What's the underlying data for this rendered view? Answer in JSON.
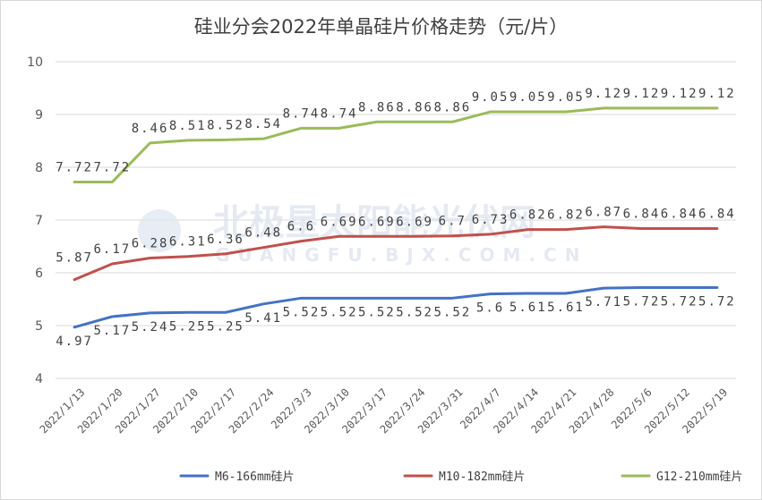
{
  "chart_data": {
    "type": "line",
    "title": "硅业分会2022年单晶硅片价格走势（元/片）",
    "xlabel": "",
    "ylabel": "",
    "ylim": [
      4,
      10
    ],
    "yticks": [
      "4",
      "5",
      "6",
      "7",
      "8",
      "9",
      "10"
    ],
    "x": [
      "2022/1/13",
      "2022/1/20",
      "2022/1/27",
      "2022/2/10",
      "2022/2/17",
      "2022/2/24",
      "2022/3/3",
      "2022/3/10",
      "2022/3/17",
      "2022/3/24",
      "2022/3/31",
      "2022/4/7",
      "2022/4/14",
      "2022/4/21",
      "2022/4/28",
      "2022/5/6",
      "2022/5/12",
      "2022/5/19"
    ],
    "series": [
      {
        "name": "M6-166mm硅片",
        "color": "#4472c4",
        "values": [
          4.97,
          5.17,
          5.24,
          5.25,
          5.25,
          5.41,
          5.52,
          5.52,
          5.52,
          5.52,
          5.52,
          5.6,
          5.61,
          5.61,
          5.71,
          5.72,
          5.72,
          5.72
        ],
        "labels": [
          "4.97",
          "5.17",
          "5.24",
          "5.25",
          "5.25",
          "5.41",
          "5.52",
          "5.52",
          "5.52",
          "5.52",
          "5.52",
          "5.6",
          "5.61",
          "5.61",
          "5.71",
          "5.72",
          "5.72",
          "5.72"
        ]
      },
      {
        "name": "M10-182mm硅片",
        "color": "#c0504d",
        "values": [
          5.87,
          6.17,
          6.28,
          6.31,
          6.36,
          6.48,
          6.6,
          6.69,
          6.69,
          6.69,
          6.7,
          6.73,
          6.82,
          6.82,
          6.87,
          6.84,
          6.84,
          6.84
        ],
        "labels": [
          "5.87",
          "6.17",
          "6.28",
          "6.31",
          "6.36",
          "6.48",
          "6.6",
          "6.69",
          "6.69",
          "6.69",
          "6.7",
          "6.73",
          "6.82",
          "6.82",
          "6.87",
          "6.84",
          "6.84",
          "6.84"
        ]
      },
      {
        "name": "G12-210mm硅片",
        "color": "#9bbb59",
        "values": [
          7.72,
          7.72,
          8.46,
          8.51,
          8.52,
          8.54,
          8.74,
          8.74,
          8.86,
          8.86,
          8.86,
          9.05,
          9.05,
          9.05,
          9.12,
          9.12,
          9.12,
          9.12
        ],
        "labels": [
          "7.72",
          "7.72",
          "8.46",
          "8.51",
          "8.52",
          "8.54",
          "8.74",
          "8.74",
          "8.86",
          "8.86",
          "8.86",
          "9.05",
          "9.05",
          "9.05",
          "9.12",
          "9.12",
          "9.12",
          "9.12"
        ]
      }
    ],
    "grid": true,
    "legend": "bottom"
  },
  "watermark": {
    "text": "北极星太阳能光伏网",
    "url": "GUANGFU.BJX.COM.CN"
  }
}
